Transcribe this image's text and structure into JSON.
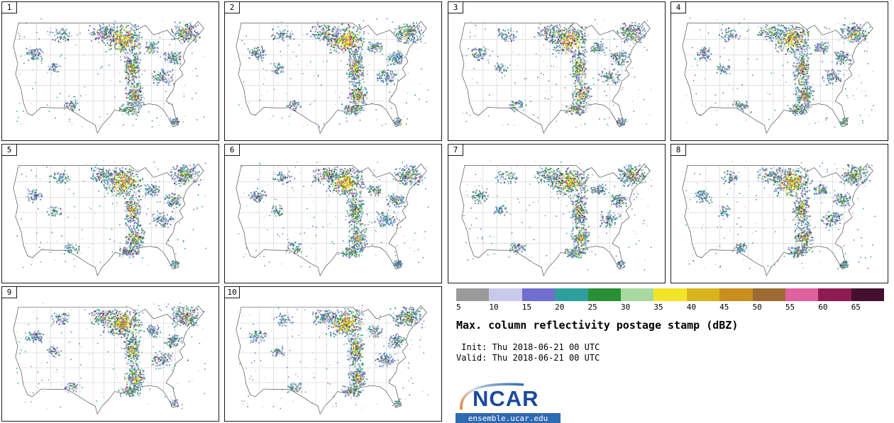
{
  "panels": [
    {
      "label": "1"
    },
    {
      "label": "2"
    },
    {
      "label": "3"
    },
    {
      "label": "4"
    },
    {
      "label": "5"
    },
    {
      "label": "6"
    },
    {
      "label": "7"
    },
    {
      "label": "8"
    },
    {
      "label": "9"
    },
    {
      "label": "10"
    }
  ],
  "legend": {
    "title": "Max. column reflectivity postage stamp (dBZ)",
    "ticks": [
      "5",
      "10",
      "15",
      "20",
      "25",
      "30",
      "35",
      "40",
      "45",
      "50",
      "55",
      "60",
      "65"
    ],
    "colors": [
      "#9a9a9a",
      "#c9c9ea",
      "#6f6fd0",
      "#2f9e9e",
      "#2a9035",
      "#a8d9a0",
      "#f2e529",
      "#d9b41c",
      "#c98f1e",
      "#9c6b33",
      "#e0619f",
      "#8e1c52",
      "#45102f"
    ],
    "init_label": " Init: Thu 2018-06-21 00 UTC",
    "valid_label": "Valid: Thu 2018-06-21 00 UTC"
  },
  "logo": {
    "text": "NCAR",
    "url": "ensemble.ucar.edu",
    "text_color": "#1b4a9e",
    "bar_color": "#2e6ab0"
  }
}
